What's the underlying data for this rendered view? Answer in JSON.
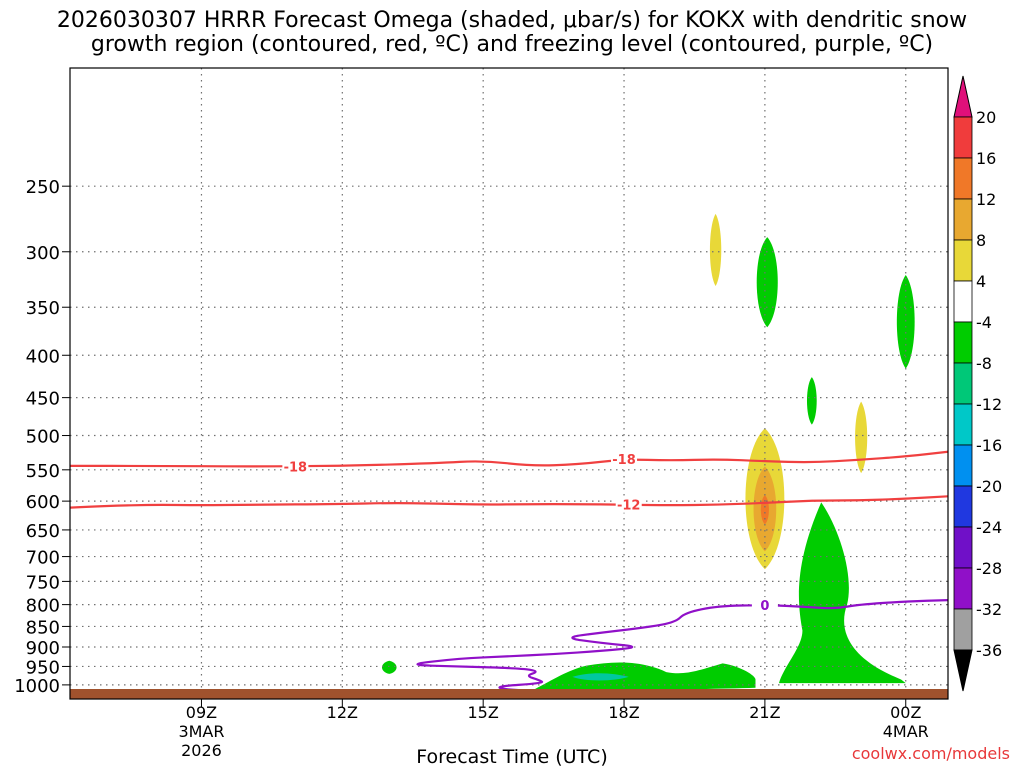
{
  "title_line1": "2026030307 HRRR Forecast Omega (shaded, μbar/s) for KOKX with dendritic snow",
  "title_line2": "growth region (contoured, red, ºC) and freezing level (contoured, purple, ºC)",
  "credit": "coolwx.com/models",
  "chart_data": {
    "type": "contour-cross-section",
    "xlabel": "Forecast Time (UTC)",
    "ylabel": "",
    "x_range_hours": [
      6.2,
      24.9
    ],
    "y_scale": "log-pressure",
    "y_range_hpa": [
      180,
      1040
    ],
    "grid": "dotted",
    "y_ticks": [
      250,
      300,
      350,
      400,
      450,
      500,
      550,
      600,
      650,
      700,
      750,
      800,
      850,
      900,
      950,
      1000
    ],
    "x_ticks": [
      {
        "hour": 9,
        "label": "09Z",
        "sub1": "3MAR",
        "sub2": "2026"
      },
      {
        "hour": 12,
        "label": "12Z",
        "sub1": "",
        "sub2": ""
      },
      {
        "hour": 15,
        "label": "15Z",
        "sub1": "",
        "sub2": ""
      },
      {
        "hour": 18,
        "label": "18Z",
        "sub1": "",
        "sub2": ""
      },
      {
        "hour": 21,
        "label": "21Z",
        "sub1": "",
        "sub2": ""
      },
      {
        "hour": 24,
        "label": "00Z",
        "sub1": "4MAR",
        "sub2": ""
      }
    ],
    "colorbar": {
      "position": "right",
      "levels": [
        20,
        16,
        12,
        8,
        4,
        -4,
        -8,
        -12,
        -16,
        -20,
        -24,
        -28,
        -32,
        -36
      ],
      "colors": [
        "#f2ec20",
        "#ff0088",
        "#f03c3c",
        "#f07828",
        "#e8a830",
        "#e8d838",
        "#ffffff",
        "#00cc00",
        "#00c878",
        "#00c8c8",
        "#0090f0",
        "#2038e0",
        "#7010c8",
        "#9010c8",
        "#a0a0a0",
        "#000000"
      ],
      "band_colors": [
        "#f03c3c",
        "#f07828",
        "#e8a830",
        "#e8d838",
        "#ffffff",
        "#00cc00",
        "#00c878",
        "#00c8c8",
        "#0090f0",
        "#2038e0",
        "#7010c8",
        "#9010c8",
        "#a0a0a0"
      ],
      "top_arrow_color": "#e0107a",
      "bottom_arrow_color": "#000000"
    },
    "contours": [
      {
        "name": "-18",
        "color": "#f04040",
        "label_at_hours": [
          11.0,
          18.0
        ],
        "points": [
          [
            6.2,
            544
          ],
          [
            8,
            544
          ],
          [
            10,
            545
          ],
          [
            12,
            544
          ],
          [
            14,
            540
          ],
          [
            15,
            536
          ],
          [
            16,
            544
          ],
          [
            17,
            542
          ],
          [
            18,
            534
          ],
          [
            19,
            536
          ],
          [
            20,
            534
          ],
          [
            21,
            537
          ],
          [
            22,
            539
          ],
          [
            23,
            535
          ],
          [
            24,
            530
          ],
          [
            24.9,
            523
          ]
        ]
      },
      {
        "name": "-12",
        "color": "#f04040",
        "label_at_hours": [
          18.1
        ],
        "points": [
          [
            6.2,
            611
          ],
          [
            7,
            608
          ],
          [
            8,
            606
          ],
          [
            9,
            607
          ],
          [
            10,
            606
          ],
          [
            12,
            605
          ],
          [
            13,
            603
          ],
          [
            14,
            604
          ],
          [
            15,
            606
          ],
          [
            16,
            605
          ],
          [
            17,
            605
          ],
          [
            18,
            606
          ],
          [
            19,
            607
          ],
          [
            20,
            606
          ],
          [
            21,
            603
          ],
          [
            22,
            599
          ],
          [
            23,
            599
          ],
          [
            24,
            596
          ],
          [
            24.9,
            592
          ]
        ]
      },
      {
        "name": "0",
        "color": "#9010c8",
        "label_at_hours": [
          21.0
        ],
        "points": [
          [
            24.9,
            790
          ],
          [
            24,
            793
          ],
          [
            23,
            800
          ],
          [
            22.5,
            809
          ],
          [
            22,
            806
          ],
          [
            21.5,
            803
          ],
          [
            21,
            801
          ],
          [
            20,
            803
          ],
          [
            19.3,
            818
          ],
          [
            19.1,
            840
          ],
          [
            18.5,
            852
          ],
          [
            17.5,
            865
          ],
          [
            16.7,
            877
          ],
          [
            17.5,
            890
          ],
          [
            18.4,
            900
          ],
          [
            17.5,
            910
          ],
          [
            16.5,
            918
          ],
          [
            15.5,
            924
          ],
          [
            14.5,
            929
          ],
          [
            13.3,
            946
          ],
          [
            14.5,
            950
          ],
          [
            15.8,
            955
          ],
          [
            16.2,
            963
          ],
          [
            15.9,
            975
          ],
          [
            16.2,
            987
          ],
          [
            16.3,
            995
          ],
          [
            15.2,
            1005
          ],
          [
            15.6,
            1015
          ],
          [
            16.5,
            1016
          ],
          [
            17.2,
            1015
          ]
        ]
      }
    ],
    "shaded_regions": [
      {
        "name": "yellow",
        "value_min": 4,
        "value_max": 8,
        "color": "#e8d838",
        "hour_center": 19.95,
        "hour_halfwidth": 0.14,
        "p_top": 270,
        "p_bottom": 330
      },
      {
        "name": "green",
        "value_min": -8,
        "value_max": -4,
        "color": "#00cc00",
        "hour_center": 21.05,
        "hour_halfwidth": 0.26,
        "p_top": 288,
        "p_bottom": 370
      },
      {
        "name": "green",
        "value_min": -8,
        "value_max": -4,
        "color": "#00cc00",
        "hour_center": 24.0,
        "hour_halfwidth": 0.22,
        "p_top": 320,
        "p_bottom": 415
      },
      {
        "name": "green",
        "value_min": -8,
        "value_max": -4,
        "color": "#00cc00",
        "hour_center": 22.0,
        "hour_halfwidth": 0.12,
        "p_top": 425,
        "p_bottom": 485
      },
      {
        "name": "yellow",
        "value_min": 4,
        "value_max": 8,
        "color": "#e8d838",
        "hour_center": 23.05,
        "hour_halfwidth": 0.15,
        "p_top": 455,
        "p_bottom": 555
      },
      {
        "name": "yellow",
        "value_min": 4,
        "value_max": 8,
        "color": "#e8d838",
        "hour_center": 21.0,
        "hour_halfwidth": 0.48,
        "p_top": 490,
        "p_bottom": 725
      },
      {
        "name": "gold",
        "value_min": 8,
        "value_max": 12,
        "color": "#e8a830",
        "hour_center": 21.0,
        "hour_halfwidth": 0.28,
        "p_top": 545,
        "p_bottom": 690
      },
      {
        "name": "orange",
        "value_min": 12,
        "value_max": 16,
        "color": "#f07828",
        "hour_center": 21.0,
        "hour_halfwidth": 0.1,
        "p_top": 590,
        "p_bottom": 640
      },
      {
        "name": "green",
        "value_min": -8,
        "value_max": -4,
        "color": "#00cc00",
        "hour_center": 13.0,
        "hour_halfwidth": 0.18,
        "p_top": 935,
        "p_bottom": 970
      }
    ],
    "surface_color": "#a0522d"
  }
}
